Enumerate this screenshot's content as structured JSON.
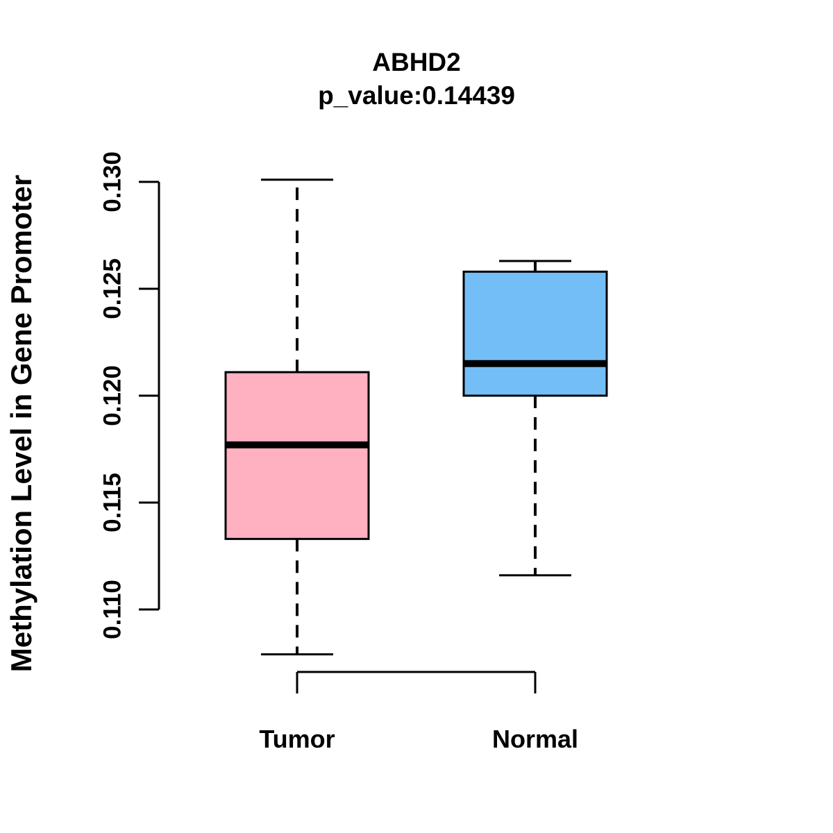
{
  "header": {
    "title": "ABHD2",
    "subtitle": "p_value:0.14439"
  },
  "y_axis": {
    "label": "Methylation Level in Gene Promoter",
    "tick_labels": [
      "0.110",
      "0.115",
      "0.120",
      "0.125",
      "0.130"
    ],
    "tick_values": [
      0.11,
      0.115,
      0.12,
      0.125,
      0.13
    ],
    "range": [
      0.11,
      0.13
    ]
  },
  "x_axis": {
    "categories": [
      "Tumor",
      "Normal"
    ]
  },
  "chart_data": {
    "type": "boxplot",
    "title": "ABHD2",
    "subtitle": "p_value:0.14439",
    "p_value": "0.14439",
    "ylabel": "Methylation Level in Gene Promoter",
    "ylim": [
      0.11,
      0.13
    ],
    "y_ticks": [
      0.11,
      0.115,
      0.12,
      0.125,
      0.13
    ],
    "categories": [
      "Tumor",
      "Normal"
    ],
    "series": [
      {
        "name": "Tumor",
        "fill_color": "#FFB0C1",
        "whisker_low": 0.1079,
        "q1": 0.1133,
        "median": 0.1177,
        "q3": 0.1211,
        "whisker_high": 0.1301
      },
      {
        "name": "Normal",
        "fill_color": "#74BEF8",
        "whisker_low": 0.1116,
        "q1": 0.12,
        "median": 0.1215,
        "q3": 0.1258,
        "whisker_high": 0.1263
      }
    ],
    "grid": false,
    "legend": false,
    "comparison_bracket": true
  },
  "colors": {
    "background": "#FFFFFF",
    "axis": "#000000",
    "text": "#000000",
    "box_border": "#000000",
    "median_line": "#000000",
    "tumor_fill": "#FFB0C1",
    "normal_fill": "#74BEF8"
  }
}
